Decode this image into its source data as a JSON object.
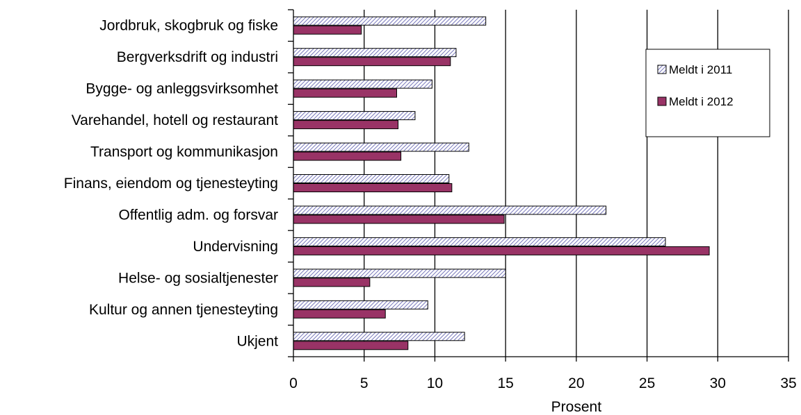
{
  "chart_data": {
    "type": "bar",
    "orientation": "horizontal",
    "title": "",
    "xlabel": "Prosent",
    "ylabel": "",
    "xlim": [
      0,
      35
    ],
    "x_ticks": [
      0,
      5,
      10,
      15,
      20,
      25,
      30,
      35
    ],
    "grid": true,
    "legend_position": "top-right",
    "categories": [
      "Jordbruk, skogbruk og fiske",
      "Bergverksdrift og industri",
      "Bygge- og anleggsvirksomhet",
      "Varehandel, hotell og restaurant",
      "Transport og kommunikasjon",
      "Finans, eiendom og tjenesteyting",
      "Offentlig adm. og forsvar",
      "Undervisning",
      "Helse- og sosialtjenester",
      "Kultur og annen tjenesteyting",
      "Ukjent"
    ],
    "series": [
      {
        "name": "Meldt i 2011",
        "pattern": "hatched",
        "color": "#b8b8dc",
        "values": [
          13.6,
          11.5,
          9.8,
          8.6,
          12.4,
          11.0,
          22.1,
          26.3,
          15.0,
          9.5,
          12.1
        ]
      },
      {
        "name": "Meldt i 2012",
        "pattern": "solid",
        "color": "#993366",
        "values": [
          4.8,
          11.1,
          7.3,
          7.4,
          7.6,
          11.2,
          14.9,
          29.4,
          5.4,
          6.5,
          8.1
        ]
      }
    ]
  }
}
